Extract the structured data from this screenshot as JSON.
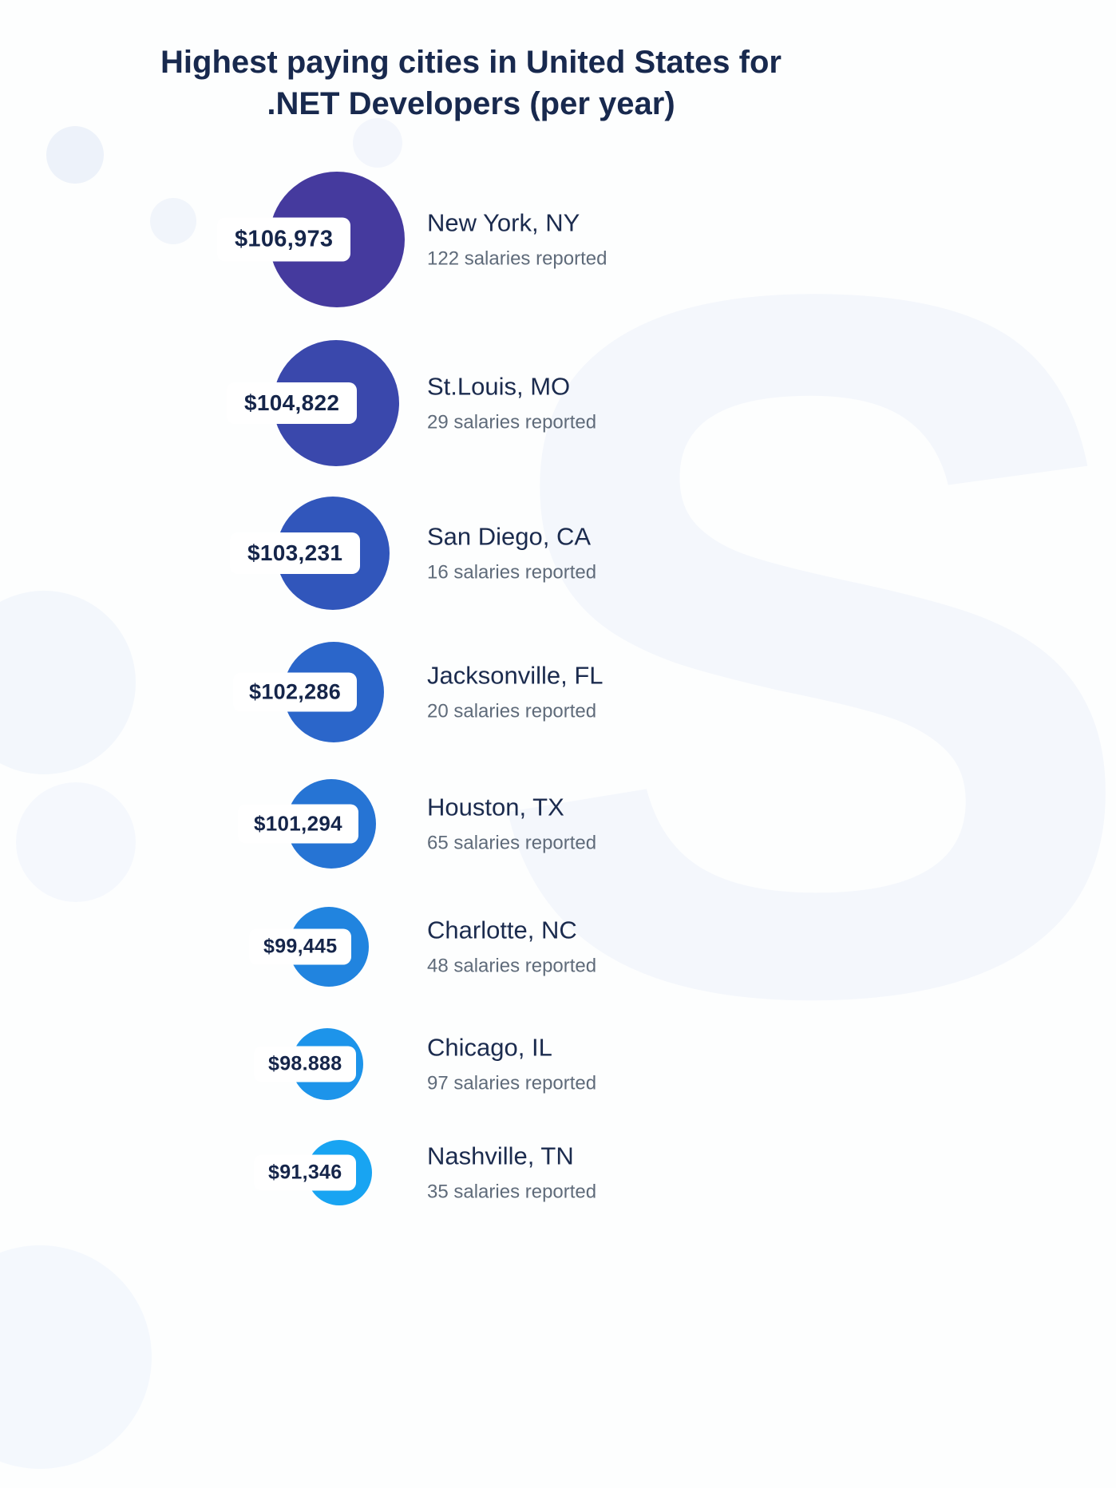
{
  "page": {
    "title_line1": "Highest paying cities in United States for",
    "title_line2": ".NET Developers (per year)"
  },
  "chart_data": {
    "type": "bar",
    "title": "Highest paying cities in United States for .NET Developers (per year)",
    "categories": [
      "New York, NY",
      "St.Louis, MO",
      "San Diego, CA",
      "Jacksonville, FL",
      "Houston, TX",
      "Charlotte, NC",
      "Chicago, IL",
      "Nashville, TN"
    ],
    "values": [
      106973,
      104822,
      103231,
      102286,
      101294,
      99445,
      98888,
      91346
    ],
    "salaries_reported_counts": [
      122,
      29,
      16,
      20,
      65,
      48,
      97,
      35
    ],
    "legend_position": "none",
    "items": [
      {
        "salary_label": "$106,973",
        "salary_value": 106973,
        "city": "New York, NY",
        "reported": "122 salaries reported",
        "color": "#453A9E"
      },
      {
        "salary_label": "$104,822",
        "salary_value": 104822,
        "city": "St.Louis, MO",
        "reported": "29 salaries reported",
        "color": "#3A48AC"
      },
      {
        "salary_label": "$103,231",
        "salary_value": 103231,
        "city": "San Diego, CA",
        "reported": "16 salaries reported",
        "color": "#3156BB"
      },
      {
        "salary_label": "$102,286",
        "salary_value": 102286,
        "city": "Jacksonville, FL",
        "reported": "20 salaries reported",
        "color": "#2B66CA"
      },
      {
        "salary_label": "$101,294",
        "salary_value": 101294,
        "city": "Houston, TX",
        "reported": "65 salaries reported",
        "color": "#2674D4"
      },
      {
        "salary_label": "$99,445",
        "salary_value": 99445,
        "city": "Charlotte, NC",
        "reported": "48 salaries reported",
        "color": "#2184DF"
      },
      {
        "salary_label": "$98.888",
        "salary_value": 98888,
        "city": "Chicago, IL",
        "reported": "97 salaries reported",
        "color": "#1D94EA"
      },
      {
        "salary_label": "$91,346",
        "salary_value": 91346,
        "city": "Nashville, TN",
        "reported": "35 salaries reported",
        "color": "#18A4F2"
      }
    ]
  }
}
